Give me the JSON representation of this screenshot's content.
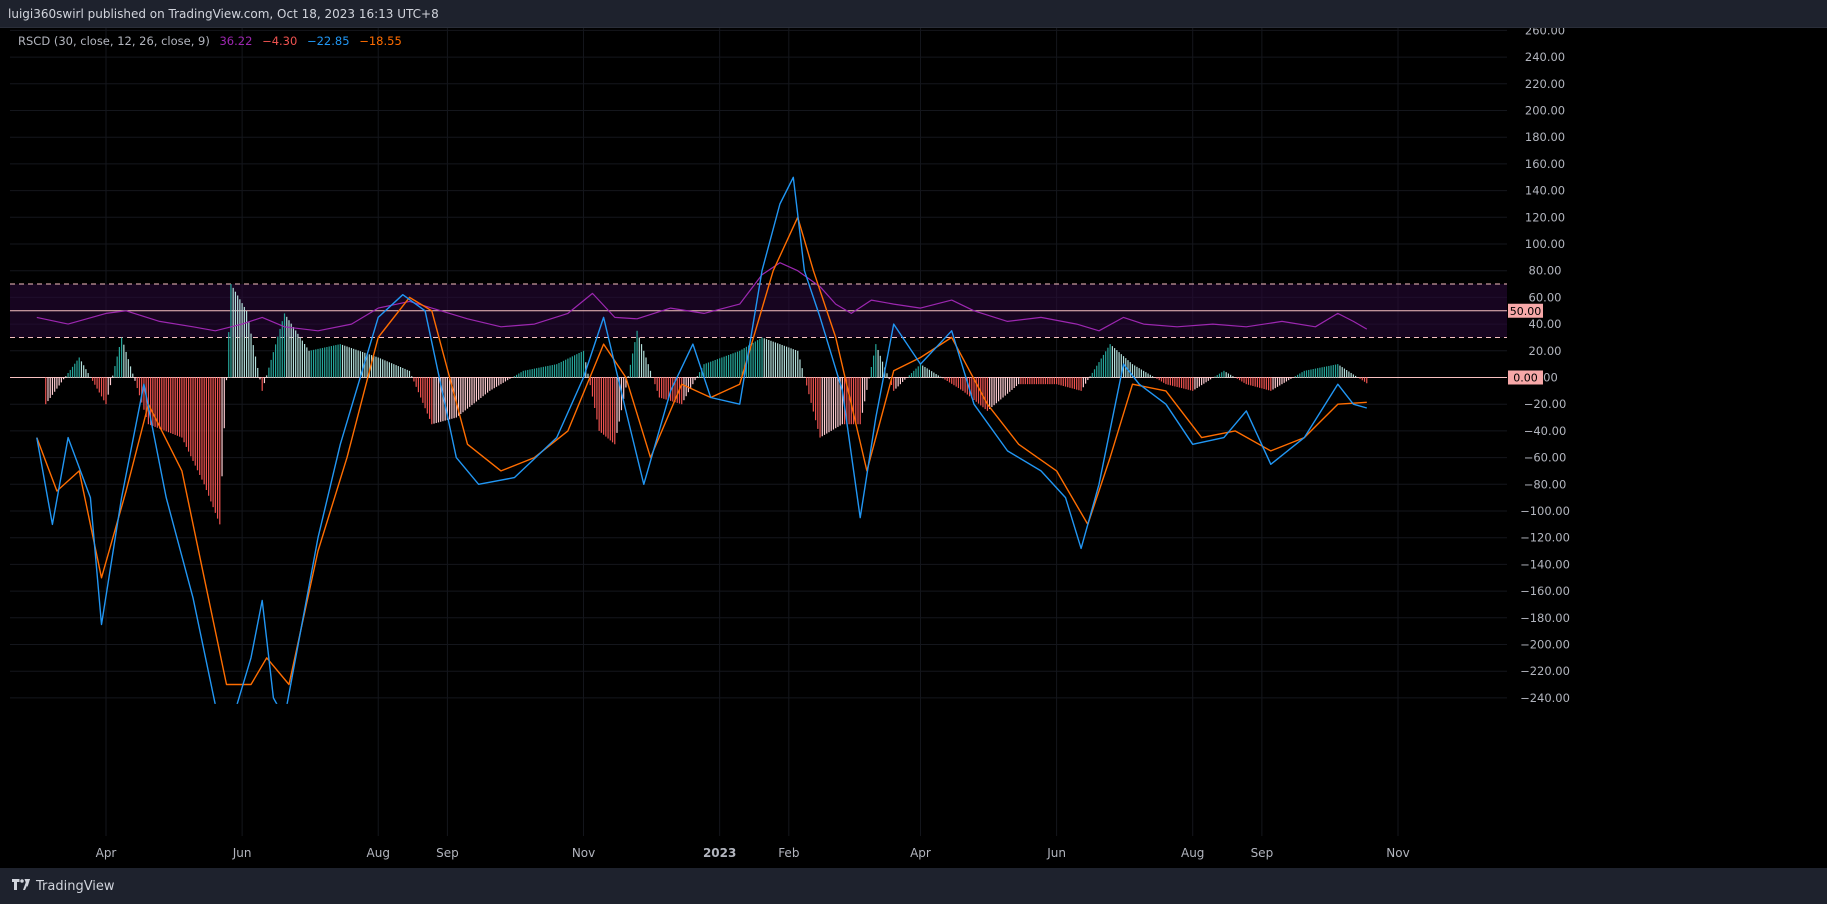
{
  "header": {
    "publish_text": "luigi360swirl published on TradingView.com, Oct 18, 2023 16:13 UTC+8"
  },
  "footer": {
    "brand_label": "TradingView",
    "brand_icon": "tradingview-logo-icon"
  },
  "legend": {
    "name": "RSCD (30, close, 12, 26, close, 9)",
    "values": [
      {
        "text": "36.22",
        "color": "#9c27b0"
      },
      {
        "text": "−4.30",
        "color": "#ef5350"
      },
      {
        "text": "−22.85",
        "color": "#2196f3"
      },
      {
        "text": "−18.55",
        "color": "#ff6d00"
      }
    ]
  },
  "colors": {
    "background": "#000000",
    "rsi_line": "#9c27b0",
    "rsi_band_fill": "#2a0a3a",
    "macd_line": "#2196f3",
    "signal_line": "#ff6d00",
    "hist_positive_strong": "#26a69a",
    "hist_positive_weak": "#b2dfdb",
    "hist_negative_strong": "#ef5350",
    "hist_negative_weak": "#ffcdd2",
    "level_line": "#f7c1c1",
    "grid": "#14161c",
    "axis_text": "#b2b5be"
  },
  "chart_data": {
    "type": "line",
    "title": "",
    "ylim": [
      -250,
      265
    ],
    "y_ticks": [
      260,
      240,
      220,
      200,
      180,
      160,
      140,
      120,
      100,
      80,
      60,
      40,
      20,
      0,
      -20,
      -40,
      -60,
      -80,
      -100,
      -120,
      -140,
      -160,
      -180,
      -200,
      -220,
      -240
    ],
    "y_tick_labels": [
      "260.00",
      "240.00",
      "220.00",
      "200.00",
      "180.00",
      "160.00",
      "140.00",
      "120.00",
      "100.00",
      "80.00",
      "60.00",
      "40.00",
      "20.00",
      "0.00",
      "−20.00",
      "−40.00",
      "−60.00",
      "−80.00",
      "−100.00",
      "−120.00",
      "−140.00",
      "−160.00",
      "−180.00",
      "−200.00",
      "−220.00",
      "−240.00"
    ],
    "x_range": [
      "2022-03-01",
      "2023-11-25"
    ],
    "x_ticks": [
      {
        "date": "2022-04-01",
        "label": "Apr"
      },
      {
        "date": "2022-06-01",
        "label": "Jun"
      },
      {
        "date": "2022-08-01",
        "label": "Aug"
      },
      {
        "date": "2022-09-01",
        "label": "Sep"
      },
      {
        "date": "2022-11-01",
        "label": "Nov"
      },
      {
        "date": "2023-01-01",
        "label": "2023"
      },
      {
        "date": "2023-02-01",
        "label": "Feb"
      },
      {
        "date": "2023-04-01",
        "label": "Apr"
      },
      {
        "date": "2023-06-01",
        "label": "Jun"
      },
      {
        "date": "2023-08-01",
        "label": "Aug"
      },
      {
        "date": "2023-09-01",
        "label": "Sep"
      },
      {
        "date": "2023-11-01",
        "label": "Nov"
      }
    ],
    "levels": [
      {
        "value": 70,
        "style": "dashed"
      },
      {
        "value": 50,
        "style": "solid",
        "label": "50.00"
      },
      {
        "value": 30,
        "style": "dashed"
      },
      {
        "value": 0,
        "style": "solid",
        "label": "0.00"
      }
    ],
    "rsi_band": [
      30,
      70
    ],
    "series": [
      {
        "key": "rsi",
        "points": [
          [
            "2022-03-01",
            45
          ],
          [
            "2022-03-15",
            40
          ],
          [
            "2022-04-01",
            48
          ],
          [
            "2022-04-10",
            50
          ],
          [
            "2022-04-25",
            42
          ],
          [
            "2022-05-10",
            38
          ],
          [
            "2022-05-20",
            35
          ],
          [
            "2022-06-01",
            40
          ],
          [
            "2022-06-10",
            45
          ],
          [
            "2022-06-20",
            38
          ],
          [
            "2022-07-05",
            35
          ],
          [
            "2022-07-20",
            40
          ],
          [
            "2022-08-01",
            52
          ],
          [
            "2022-08-15",
            57
          ],
          [
            "2022-08-25",
            52
          ],
          [
            "2022-09-10",
            44
          ],
          [
            "2022-09-25",
            38
          ],
          [
            "2022-10-10",
            40
          ],
          [
            "2022-10-25",
            48
          ],
          [
            "2022-11-05",
            63
          ],
          [
            "2022-11-15",
            45
          ],
          [
            "2022-11-25",
            44
          ],
          [
            "2022-12-10",
            52
          ],
          [
            "2022-12-25",
            48
          ],
          [
            "2023-01-10",
            55
          ],
          [
            "2023-01-20",
            77
          ],
          [
            "2023-01-28",
            86
          ],
          [
            "2023-02-05",
            80
          ],
          [
            "2023-02-15",
            68
          ],
          [
            "2023-02-22",
            55
          ],
          [
            "2023-03-01",
            48
          ],
          [
            "2023-03-10",
            58
          ],
          [
            "2023-03-20",
            55
          ],
          [
            "2023-04-01",
            52
          ],
          [
            "2023-04-15",
            58
          ],
          [
            "2023-04-25",
            50
          ],
          [
            "2023-05-10",
            42
          ],
          [
            "2023-05-25",
            45
          ],
          [
            "2023-06-10",
            40
          ],
          [
            "2023-06-20",
            35
          ],
          [
            "2023-07-01",
            45
          ],
          [
            "2023-07-10",
            40
          ],
          [
            "2023-07-25",
            38
          ],
          [
            "2023-08-10",
            40
          ],
          [
            "2023-08-25",
            38
          ],
          [
            "2023-09-10",
            42
          ],
          [
            "2023-09-25",
            38
          ],
          [
            "2023-10-05",
            48
          ],
          [
            "2023-10-12",
            42
          ],
          [
            "2023-10-18",
            36.22
          ]
        ]
      },
      {
        "key": "macd",
        "points": [
          [
            "2022-03-01",
            -45
          ],
          [
            "2022-03-08",
            -110
          ],
          [
            "2022-03-15",
            -45
          ],
          [
            "2022-03-25",
            -90
          ],
          [
            "2022-03-30",
            -185
          ],
          [
            "2022-04-08",
            -90
          ],
          [
            "2022-04-18",
            -5
          ],
          [
            "2022-04-28",
            -90
          ],
          [
            "2022-05-10",
            -165
          ],
          [
            "2022-05-20",
            -245
          ],
          [
            "2022-05-27",
            -260
          ],
          [
            "2022-06-05",
            -210
          ],
          [
            "2022-06-10",
            -167
          ],
          [
            "2022-06-15",
            -240
          ],
          [
            "2022-06-20",
            -255
          ],
          [
            "2022-07-05",
            -120
          ],
          [
            "2022-07-15",
            -50
          ],
          [
            "2022-08-01",
            45
          ],
          [
            "2022-08-12",
            62
          ],
          [
            "2022-08-22",
            50
          ],
          [
            "2022-09-05",
            -60
          ],
          [
            "2022-09-15",
            -80
          ],
          [
            "2022-10-01",
            -75
          ],
          [
            "2022-10-20",
            -45
          ],
          [
            "2022-11-01",
            0
          ],
          [
            "2022-11-10",
            45
          ],
          [
            "2022-11-20",
            -25
          ],
          [
            "2022-11-28",
            -80
          ],
          [
            "2022-12-10",
            -10
          ],
          [
            "2022-12-20",
            25
          ],
          [
            "2022-12-28",
            -15
          ],
          [
            "2023-01-10",
            -20
          ],
          [
            "2023-01-20",
            80
          ],
          [
            "2023-01-28",
            130
          ],
          [
            "2023-02-03",
            150
          ],
          [
            "2023-02-08",
            80
          ],
          [
            "2023-02-15",
            45
          ],
          [
            "2023-02-25",
            -10
          ],
          [
            "2023-03-05",
            -105
          ],
          [
            "2023-03-12",
            -30
          ],
          [
            "2023-03-20",
            40
          ],
          [
            "2023-04-01",
            10
          ],
          [
            "2023-04-15",
            35
          ],
          [
            "2023-04-25",
            -20
          ],
          [
            "2023-05-10",
            -55
          ],
          [
            "2023-05-25",
            -70
          ],
          [
            "2023-06-05",
            -90
          ],
          [
            "2023-06-12",
            -128
          ],
          [
            "2023-06-20",
            -80
          ],
          [
            "2023-07-01",
            10
          ],
          [
            "2023-07-08",
            -5
          ],
          [
            "2023-07-20",
            -20
          ],
          [
            "2023-08-01",
            -50
          ],
          [
            "2023-08-15",
            -45
          ],
          [
            "2023-08-25",
            -25
          ],
          [
            "2023-09-05",
            -65
          ],
          [
            "2023-09-20",
            -45
          ],
          [
            "2023-10-05",
            -5
          ],
          [
            "2023-10-12",
            -20
          ],
          [
            "2023-10-18",
            -22.85
          ]
        ]
      },
      {
        "key": "signal",
        "points": [
          [
            "2022-03-01",
            -45
          ],
          [
            "2022-03-10",
            -85
          ],
          [
            "2022-03-20",
            -70
          ],
          [
            "2022-03-30",
            -150
          ],
          [
            "2022-04-10",
            -85
          ],
          [
            "2022-04-20",
            -20
          ],
          [
            "2022-05-05",
            -70
          ],
          [
            "2022-05-15",
            -150
          ],
          [
            "2022-05-25",
            -230
          ],
          [
            "2022-06-05",
            -230
          ],
          [
            "2022-06-12",
            -210
          ],
          [
            "2022-06-22",
            -230
          ],
          [
            "2022-07-05",
            -130
          ],
          [
            "2022-07-18",
            -60
          ],
          [
            "2022-08-01",
            30
          ],
          [
            "2022-08-15",
            60
          ],
          [
            "2022-08-25",
            50
          ],
          [
            "2022-09-10",
            -50
          ],
          [
            "2022-09-25",
            -70
          ],
          [
            "2022-10-10",
            -60
          ],
          [
            "2022-10-25",
            -40
          ],
          [
            "2022-11-10",
            25
          ],
          [
            "2022-11-20",
            0
          ],
          [
            "2022-12-01",
            -60
          ],
          [
            "2022-12-15",
            -5
          ],
          [
            "2022-12-28",
            -15
          ],
          [
            "2023-01-10",
            -5
          ],
          [
            "2023-01-25",
            80
          ],
          [
            "2023-02-05",
            120
          ],
          [
            "2023-02-12",
            80
          ],
          [
            "2023-02-22",
            30
          ],
          [
            "2023-03-08",
            -70
          ],
          [
            "2023-03-20",
            5
          ],
          [
            "2023-04-01",
            15
          ],
          [
            "2023-04-15",
            30
          ],
          [
            "2023-05-01",
            -20
          ],
          [
            "2023-05-15",
            -50
          ],
          [
            "2023-06-01",
            -70
          ],
          [
            "2023-06-15",
            -110
          ],
          [
            "2023-06-25",
            -60
          ],
          [
            "2023-07-05",
            -5
          ],
          [
            "2023-07-20",
            -10
          ],
          [
            "2023-08-05",
            -45
          ],
          [
            "2023-08-20",
            -40
          ],
          [
            "2023-09-05",
            -55
          ],
          [
            "2023-09-20",
            -45
          ],
          [
            "2023-10-05",
            -20
          ],
          [
            "2023-10-18",
            -18.55
          ]
        ]
      },
      {
        "key": "histogram",
        "points": [
          [
            "2022-03-05",
            -20
          ],
          [
            "2022-03-20",
            15
          ],
          [
            "2022-04-01",
            -20
          ],
          [
            "2022-04-08",
            30
          ],
          [
            "2022-04-20",
            -35
          ],
          [
            "2022-05-05",
            -45
          ],
          [
            "2022-05-15",
            -80
          ],
          [
            "2022-05-22",
            -110
          ],
          [
            "2022-05-27",
            70
          ],
          [
            "2022-06-03",
            50
          ],
          [
            "2022-06-10",
            -10
          ],
          [
            "2022-06-20",
            48
          ],
          [
            "2022-07-01",
            20
          ],
          [
            "2022-07-15",
            25
          ],
          [
            "2022-08-01",
            15
          ],
          [
            "2022-08-15",
            5
          ],
          [
            "2022-08-25",
            -35
          ],
          [
            "2022-09-05",
            -30
          ],
          [
            "2022-09-20",
            -10
          ],
          [
            "2022-10-05",
            5
          ],
          [
            "2022-10-20",
            10
          ],
          [
            "2022-11-01",
            20
          ],
          [
            "2022-11-08",
            -40
          ],
          [
            "2022-11-15",
            -50
          ],
          [
            "2022-11-25",
            35
          ],
          [
            "2022-12-05",
            -15
          ],
          [
            "2022-12-15",
            -20
          ],
          [
            "2022-12-25",
            10
          ],
          [
            "2023-01-10",
            20
          ],
          [
            "2023-01-20",
            30
          ],
          [
            "2023-02-05",
            20
          ],
          [
            "2023-02-15",
            -45
          ],
          [
            "2023-02-25",
            -35
          ],
          [
            "2023-03-05",
            -35
          ],
          [
            "2023-03-12",
            25
          ],
          [
            "2023-03-20",
            -10
          ],
          [
            "2023-04-01",
            10
          ],
          [
            "2023-04-20",
            -10
          ],
          [
            "2023-05-01",
            -25
          ],
          [
            "2023-05-15",
            -5
          ],
          [
            "2023-06-01",
            -5
          ],
          [
            "2023-06-12",
            -10
          ],
          [
            "2023-06-25",
            25
          ],
          [
            "2023-07-05",
            10
          ],
          [
            "2023-07-20",
            -5
          ],
          [
            "2023-08-01",
            -10
          ],
          [
            "2023-08-15",
            5
          ],
          [
            "2023-08-25",
            -5
          ],
          [
            "2023-09-05",
            -10
          ],
          [
            "2023-09-20",
            5
          ],
          [
            "2023-10-05",
            10
          ],
          [
            "2023-10-18",
            -4.3
          ]
        ]
      }
    ]
  }
}
